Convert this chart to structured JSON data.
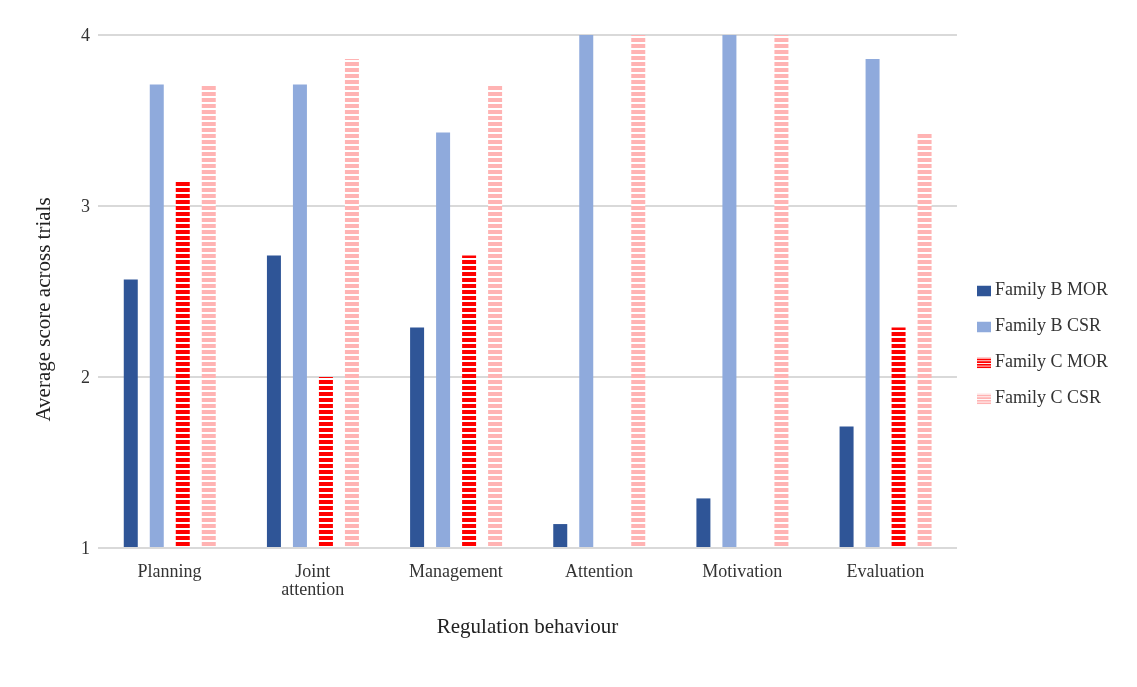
{
  "chart_data": {
    "type": "bar",
    "xlabel": "Regulation behaviour",
    "ylabel": "Average score across trials",
    "categories": [
      "Planning",
      "Joint attention",
      "Management",
      "Attention",
      "Motivation",
      "Evaluation"
    ],
    "series": [
      {
        "name": "Family B MOR",
        "color": "#2f5597",
        "values": [
          2.57,
          2.71,
          2.29,
          1.14,
          1.29,
          1.71
        ]
      },
      {
        "name": "Family B CSR",
        "color": "#8faadc",
        "values": [
          3.71,
          3.71,
          3.43,
          4,
          4,
          3.86
        ]
      },
      {
        "name": "Family C MOR",
        "color": "#ff0000",
        "values": [
          3.14,
          2.0,
          2.71,
          null,
          null,
          2.29
        ]
      },
      {
        "name": "Family C CSR",
        "color": "#ffb3b3",
        "values": [
          3.71,
          3.86,
          3.71,
          4,
          4,
          3.43
        ]
      }
    ],
    "ylim": [
      1,
      4
    ],
    "yticks": [
      1,
      2,
      3,
      4
    ],
    "grid": "y",
    "legend": "right"
  }
}
